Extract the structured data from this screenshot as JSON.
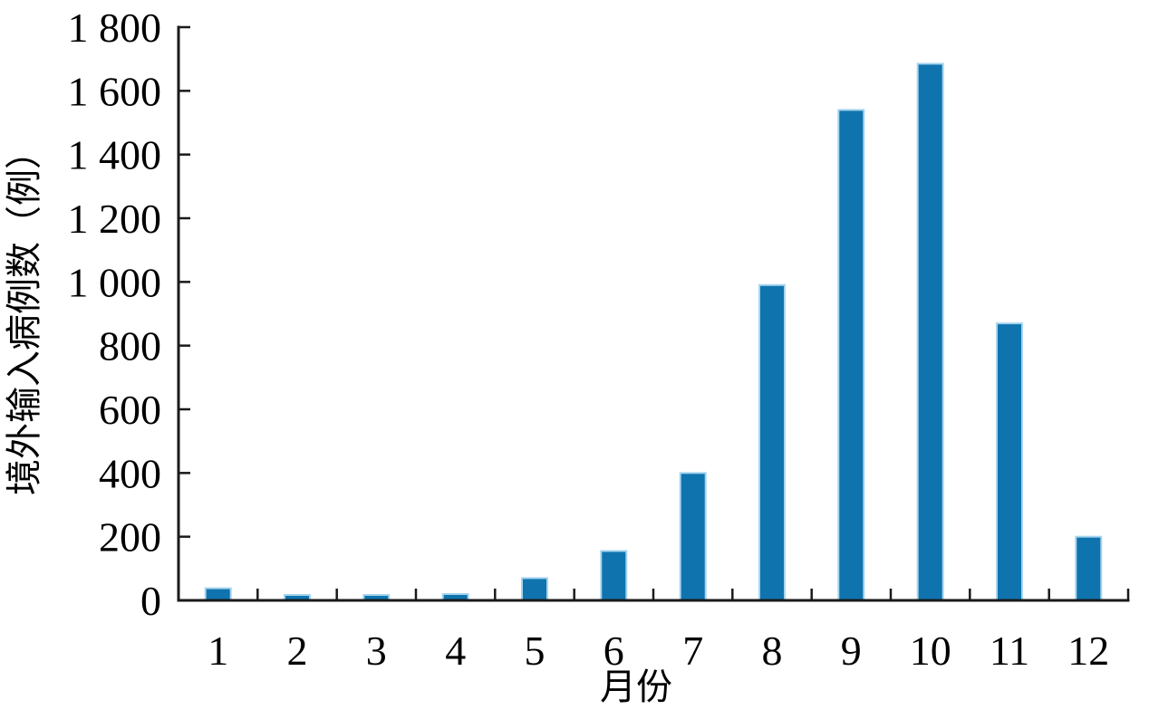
{
  "chart_data": {
    "type": "bar",
    "title": "",
    "xlabel": "月份",
    "ylabel": "境外输入病例数（例）",
    "categories": [
      "1",
      "2",
      "3",
      "4",
      "5",
      "6",
      "7",
      "8",
      "9",
      "10",
      "11",
      "12"
    ],
    "values": [
      38,
      17,
      17,
      20,
      70,
      155,
      400,
      990,
      1540,
      1685,
      870,
      200
    ],
    "series_name": "境外输入病例数",
    "ylim": [
      0,
      1800
    ],
    "ytick_step": 200,
    "ytick_labels": [
      "0",
      "200",
      "400",
      "600",
      "800",
      "1 000",
      "1 200",
      "1 400",
      "1 600",
      "1 800"
    ],
    "grid": false,
    "legend_position": "none",
    "tick_direction": "in",
    "colors": {
      "bar_fill": "#0f74ae",
      "bar_edge": "#a6d4ee",
      "axis": "#1a1a1a",
      "text": "#000000",
      "background": "#ffffff"
    }
  }
}
